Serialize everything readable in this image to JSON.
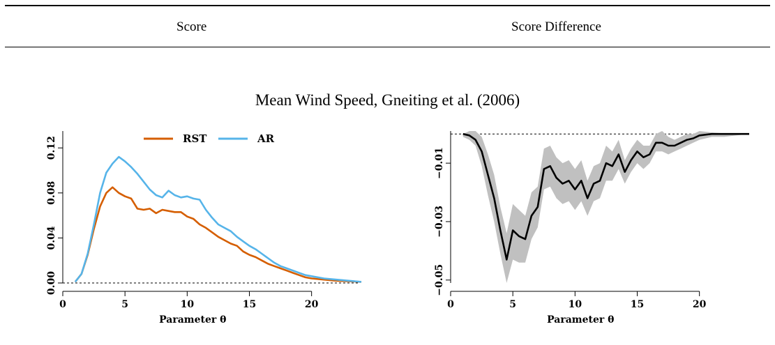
{
  "table": {
    "col1_header": "Score",
    "col2_header": "Score Difference",
    "row_title": "Mean Wind Speed, Gneiting et al. (2006)"
  },
  "chart_data": [
    {
      "type": "line",
      "title": "",
      "xlabel": "Parameter θ",
      "ylabel": "",
      "xlim": [
        0,
        24
      ],
      "ylim": [
        0,
        0.135
      ],
      "xticks": [
        "0",
        "5",
        "10",
        "15",
        "20"
      ],
      "yticks": [
        "0.00",
        "0.04",
        "0.08",
        "0.12"
      ],
      "grid": false,
      "legend_position": "top-center",
      "reference_line": 0,
      "series": [
        {
          "name": "RST",
          "color": "#D55E00",
          "x": [
            1,
            1.5,
            2,
            2.5,
            3,
            3.5,
            4,
            4.5,
            5,
            5.5,
            6,
            6.5,
            7,
            7.5,
            8,
            8.5,
            9,
            9.5,
            10,
            10.5,
            11,
            11.5,
            12,
            12.5,
            13,
            13.5,
            14,
            14.5,
            15,
            15.5,
            16,
            16.5,
            17,
            17.5,
            18,
            18.5,
            19,
            19.5,
            20,
            21,
            22,
            23,
            24
          ],
          "values": [
            0.001,
            0.008,
            0.025,
            0.048,
            0.068,
            0.08,
            0.085,
            0.08,
            0.077,
            0.075,
            0.066,
            0.065,
            0.066,
            0.062,
            0.065,
            0.064,
            0.063,
            0.063,
            0.059,
            0.057,
            0.052,
            0.049,
            0.045,
            0.041,
            0.038,
            0.035,
            0.033,
            0.028,
            0.025,
            0.023,
            0.02,
            0.017,
            0.015,
            0.013,
            0.011,
            0.009,
            0.007,
            0.005,
            0.004,
            0.003,
            0.002,
            0.0015,
            0.001
          ]
        },
        {
          "name": "AR",
          "color": "#56B4E9",
          "x": [
            1,
            1.5,
            2,
            2.5,
            3,
            3.5,
            4,
            4.5,
            5,
            5.5,
            6,
            6.5,
            7,
            7.5,
            8,
            8.5,
            9,
            9.5,
            10,
            10.5,
            11,
            11.5,
            12,
            12.5,
            13,
            13.5,
            14,
            14.5,
            15,
            15.5,
            16,
            16.5,
            17,
            17.5,
            18,
            18.5,
            19,
            19.5,
            20,
            21,
            22,
            23,
            24
          ],
          "values": [
            0.001,
            0.008,
            0.026,
            0.052,
            0.08,
            0.098,
            0.106,
            0.112,
            0.108,
            0.103,
            0.097,
            0.09,
            0.083,
            0.078,
            0.076,
            0.082,
            0.078,
            0.076,
            0.077,
            0.075,
            0.074,
            0.065,
            0.058,
            0.052,
            0.049,
            0.046,
            0.041,
            0.037,
            0.033,
            0.03,
            0.026,
            0.022,
            0.018,
            0.015,
            0.013,
            0.011,
            0.009,
            0.007,
            0.006,
            0.004,
            0.003,
            0.002,
            0.001
          ]
        }
      ]
    },
    {
      "type": "line",
      "title": "",
      "xlabel": "Parameter θ",
      "ylabel": "",
      "xlim": [
        0,
        24
      ],
      "ylim": [
        -0.051,
        0.001
      ],
      "xticks": [
        "0",
        "5",
        "10",
        "15",
        "20"
      ],
      "yticks": [
        "−0.05",
        "−0.03",
        "−0.01"
      ],
      "grid": false,
      "reference_line": 0,
      "band_color": "#c0c0c0",
      "series": [
        {
          "name": "",
          "color": "#000000",
          "x": [
            1,
            1.5,
            2,
            2.5,
            3,
            3.5,
            4,
            4.5,
            5,
            5.5,
            6,
            6.5,
            7,
            7.5,
            8,
            8.5,
            9,
            9.5,
            10,
            10.5,
            11,
            11.5,
            12,
            12.5,
            13,
            13.5,
            14,
            14.5,
            15,
            15.5,
            16,
            16.5,
            17,
            17.5,
            18,
            18.5,
            19,
            19.5,
            20,
            21,
            22,
            23,
            24
          ],
          "values": [
            0.0,
            -0.0005,
            -0.002,
            -0.006,
            -0.014,
            -0.022,
            -0.033,
            -0.043,
            -0.033,
            -0.035,
            -0.036,
            -0.028,
            -0.025,
            -0.012,
            -0.011,
            -0.015,
            -0.017,
            -0.016,
            -0.019,
            -0.016,
            -0.022,
            -0.017,
            -0.016,
            -0.01,
            -0.011,
            -0.007,
            -0.013,
            -0.009,
            -0.006,
            -0.008,
            -0.007,
            -0.003,
            -0.003,
            -0.004,
            -0.004,
            -0.003,
            -0.002,
            -0.0015,
            -0.0005,
            0.0,
            0.0,
            0.0,
            0.0
          ],
          "lower": [
            -0.001,
            -0.002,
            -0.004,
            -0.011,
            -0.021,
            -0.03,
            -0.041,
            -0.051,
            -0.043,
            -0.044,
            -0.044,
            -0.036,
            -0.032,
            -0.019,
            -0.018,
            -0.022,
            -0.024,
            -0.023,
            -0.026,
            -0.023,
            -0.028,
            -0.023,
            -0.022,
            -0.016,
            -0.016,
            -0.012,
            -0.017,
            -0.013,
            -0.01,
            -0.012,
            -0.01,
            -0.006,
            -0.006,
            -0.007,
            -0.006,
            -0.005,
            -0.004,
            -0.003,
            -0.002,
            -0.001,
            -0.001,
            -0.0005,
            0.0
          ],
          "upper": [
            0.0,
            0.001,
            0.001,
            -0.001,
            -0.007,
            -0.014,
            -0.025,
            -0.034,
            -0.024,
            -0.026,
            -0.028,
            -0.02,
            -0.018,
            -0.005,
            -0.004,
            -0.008,
            -0.01,
            -0.009,
            -0.012,
            -0.009,
            -0.016,
            -0.011,
            -0.01,
            -0.004,
            -0.006,
            -0.002,
            -0.009,
            -0.005,
            -0.002,
            -0.004,
            -0.004,
            0.0,
            0.001,
            -0.001,
            -0.002,
            -0.001,
            0.0,
            0.0,
            0.001,
            0.0005,
            0.0002,
            0.0,
            0.0
          ]
        }
      ]
    }
  ]
}
